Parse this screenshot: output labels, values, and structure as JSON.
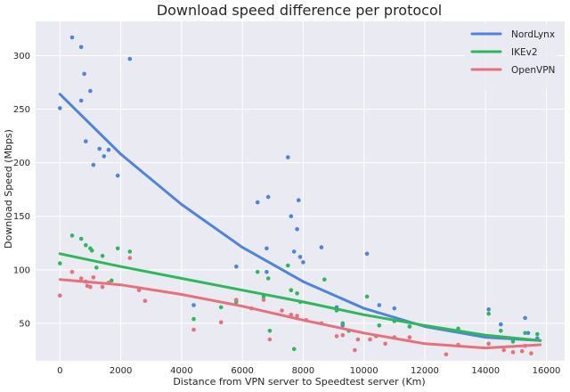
{
  "chart_data": {
    "type": "scatter",
    "title": "Download speed difference per protocol",
    "xlabel": "Distance from VPN server to Speedtest server (Km)",
    "ylabel": "Download Speed (Mbps)",
    "xlim": [
      -800,
      16600
    ],
    "ylim": [
      15,
      332
    ],
    "xticks": [
      0,
      2000,
      4000,
      6000,
      8000,
      10000,
      12000,
      14000,
      16000
    ],
    "yticks": [
      50,
      100,
      150,
      200,
      250,
      300
    ],
    "grid": true,
    "legend_position": "top-right",
    "series": [
      {
        "name": "NordLynx",
        "color": "#4c84e0",
        "trend": [
          [
            0,
            264
          ],
          [
            2000,
            208
          ],
          [
            4000,
            161
          ],
          [
            6000,
            121
          ],
          [
            8000,
            89
          ],
          [
            10000,
            64
          ],
          [
            12000,
            47
          ],
          [
            14000,
            37
          ],
          [
            15800,
            34
          ]
        ],
        "points": [
          [
            0,
            251
          ],
          [
            400,
            317
          ],
          [
            700,
            308
          ],
          [
            800,
            283
          ],
          [
            1000,
            267
          ],
          [
            700,
            258
          ],
          [
            1300,
            213
          ],
          [
            1600,
            212
          ],
          [
            850,
            220
          ],
          [
            1100,
            198
          ],
          [
            1450,
            206
          ],
          [
            1900,
            188
          ],
          [
            2300,
            297
          ],
          [
            4400,
            67
          ],
          [
            5800,
            103
          ],
          [
            6500,
            163
          ],
          [
            6800,
            120
          ],
          [
            6850,
            168
          ],
          [
            6800,
            98
          ],
          [
            7500,
            205
          ],
          [
            7600,
            150
          ],
          [
            7700,
            117
          ],
          [
            7800,
            138
          ],
          [
            7850,
            165
          ],
          [
            7900,
            112
          ],
          [
            8000,
            107
          ],
          [
            8600,
            121
          ],
          [
            9100,
            65
          ],
          [
            9300,
            48
          ],
          [
            10100,
            115
          ],
          [
            10500,
            67
          ],
          [
            11000,
            64
          ],
          [
            11500,
            47
          ],
          [
            14100,
            63
          ],
          [
            14500,
            49
          ],
          [
            15300,
            55
          ],
          [
            15400,
            41
          ],
          [
            15700,
            36
          ]
        ]
      },
      {
        "name": "IKEv2",
        "color": "#2fb85a",
        "trend": [
          [
            0,
            115
          ],
          [
            2000,
            103
          ],
          [
            4000,
            92
          ],
          [
            6000,
            81
          ],
          [
            8000,
            70
          ],
          [
            10000,
            58
          ],
          [
            12000,
            48
          ],
          [
            14000,
            39
          ],
          [
            15800,
            34
          ]
        ],
        "points": [
          [
            0,
            106
          ],
          [
            400,
            132
          ],
          [
            700,
            129
          ],
          [
            850,
            123
          ],
          [
            1000,
            120
          ],
          [
            1050,
            118
          ],
          [
            1400,
            113
          ],
          [
            1900,
            120
          ],
          [
            2300,
            117
          ],
          [
            1200,
            102
          ],
          [
            1700,
            90
          ],
          [
            4400,
            54
          ],
          [
            5300,
            65
          ],
          [
            5800,
            70
          ],
          [
            6500,
            98
          ],
          [
            6700,
            75
          ],
          [
            6850,
            92
          ],
          [
            6900,
            43
          ],
          [
            7500,
            104
          ],
          [
            7600,
            81
          ],
          [
            7700,
            26
          ],
          [
            7800,
            78
          ],
          [
            7900,
            70
          ],
          [
            8700,
            91
          ],
          [
            9100,
            62
          ],
          [
            9300,
            50
          ],
          [
            9500,
            43
          ],
          [
            10100,
            75
          ],
          [
            10500,
            48
          ],
          [
            11000,
            52
          ],
          [
            11500,
            47
          ],
          [
            13100,
            45
          ],
          [
            14100,
            59
          ],
          [
            14500,
            43
          ],
          [
            14900,
            33
          ],
          [
            15300,
            41
          ],
          [
            15700,
            40
          ]
        ]
      },
      {
        "name": "OpenVPN",
        "color": "#e8707b",
        "trend": [
          [
            0,
            91
          ],
          [
            2000,
            86
          ],
          [
            4000,
            77
          ],
          [
            6000,
            66
          ],
          [
            8000,
            53
          ],
          [
            10000,
            41
          ],
          [
            12000,
            31
          ],
          [
            14000,
            27
          ],
          [
            15800,
            30
          ]
        ],
        "points": [
          [
            0,
            76
          ],
          [
            400,
            98
          ],
          [
            700,
            92
          ],
          [
            850,
            89
          ],
          [
            900,
            85
          ],
          [
            1000,
            84
          ],
          [
            1100,
            93
          ],
          [
            1400,
            84
          ],
          [
            1600,
            88
          ],
          [
            2300,
            111
          ],
          [
            2600,
            81
          ],
          [
            2800,
            71
          ],
          [
            4400,
            44
          ],
          [
            5300,
            51
          ],
          [
            5800,
            72
          ],
          [
            6300,
            64
          ],
          [
            6700,
            72
          ],
          [
            6900,
            35
          ],
          [
            7300,
            62
          ],
          [
            7600,
            58
          ],
          [
            7800,
            57
          ],
          [
            8100,
            53
          ],
          [
            8600,
            50
          ],
          [
            9100,
            38
          ],
          [
            9300,
            39
          ],
          [
            9700,
            25
          ],
          [
            9800,
            35
          ],
          [
            10200,
            35
          ],
          [
            10400,
            38
          ],
          [
            10700,
            31
          ],
          [
            11000,
            37
          ],
          [
            11500,
            37
          ],
          [
            12700,
            21
          ],
          [
            13100,
            30
          ],
          [
            14100,
            31
          ],
          [
            14600,
            25
          ],
          [
            14900,
            23
          ],
          [
            15200,
            24
          ],
          [
            15300,
            29
          ],
          [
            15500,
            22
          ]
        ]
      }
    ]
  }
}
